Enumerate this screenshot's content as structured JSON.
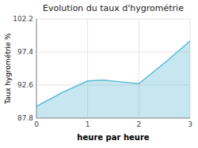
{
  "chart_data": {
    "type": "area",
    "title": "Evolution du taux d'hygrométrie",
    "xlabel": "heure par heure",
    "ylabel": "Taux hygrométrie %",
    "x": [
      0,
      0.5,
      1.0,
      1.3,
      1.6,
      2.0,
      2.5,
      3.0
    ],
    "values": [
      89.5,
      91.5,
      93.2,
      93.3,
      93.1,
      92.8,
      95.8,
      99.0
    ],
    "color": "#5bb8d4",
    "xlim": [
      0,
      3
    ],
    "ylim": [
      87.8,
      102.2
    ],
    "xticks": [
      0,
      1,
      2,
      3
    ],
    "yticks": [
      87.8,
      92.6,
      97.4,
      102.2
    ],
    "grid": true
  }
}
